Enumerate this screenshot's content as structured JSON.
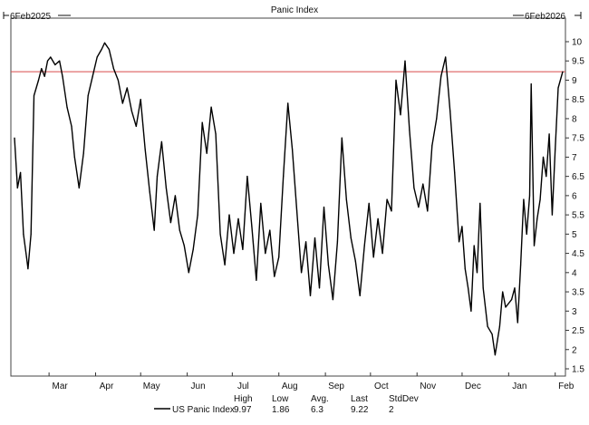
{
  "chart_data": {
    "type": "line",
    "title": "Panic Index",
    "start_label": "6Feb2025",
    "end_label": "6Feb2026",
    "xlabel": "",
    "ylabel": "",
    "ylim": [
      1.5,
      10
    ],
    "y_ticks": [
      "1.5",
      "2",
      "2.5",
      "3",
      "3.5",
      "4",
      "4.5",
      "5",
      "5.5",
      "6",
      "6.5",
      "7",
      "7.5",
      "8",
      "8.5",
      "9",
      "9.5",
      "10"
    ],
    "x_ticks": [
      {
        "label": "Mar",
        "date": "2025-03-01"
      },
      {
        "label": "Apr",
        "date": "2025-04-01"
      },
      {
        "label": "May",
        "date": "2025-05-01"
      },
      {
        "label": "Jun",
        "date": "2025-06-01"
      },
      {
        "label": "Jul",
        "date": "2025-07-01"
      },
      {
        "label": "Aug",
        "date": "2025-08-01"
      },
      {
        "label": "Sep",
        "date": "2025-09-01"
      },
      {
        "label": "Oct",
        "date": "2025-10-01"
      },
      {
        "label": "Nov",
        "date": "2025-11-01"
      },
      {
        "label": "Dec",
        "date": "2025-12-01"
      },
      {
        "label": "Jan",
        "date": "2026-01-01"
      },
      {
        "label": "Feb",
        "date": "2026-02-01"
      }
    ],
    "x_range": [
      "2025-02-06",
      "2026-02-06"
    ],
    "reference_line": {
      "value": 9.22,
      "color": "#d94a4a"
    },
    "grid": false,
    "series": [
      {
        "name": "US Panic Index",
        "color": "#000000",
        "points": [
          [
            "2025-02-06",
            7.5
          ],
          [
            "2025-02-08",
            6.2
          ],
          [
            "2025-02-10",
            6.6
          ],
          [
            "2025-02-12",
            5.0
          ],
          [
            "2025-02-14",
            4.4
          ],
          [
            "2025-02-15",
            4.1
          ],
          [
            "2025-02-17",
            5.0
          ],
          [
            "2025-02-19",
            8.6
          ],
          [
            "2025-02-22",
            9.0
          ],
          [
            "2025-02-24",
            9.3
          ],
          [
            "2025-02-26",
            9.1
          ],
          [
            "2025-02-28",
            9.5
          ],
          [
            "2025-03-02",
            9.6
          ],
          [
            "2025-03-05",
            9.4
          ],
          [
            "2025-03-08",
            9.5
          ],
          [
            "2025-03-10",
            9.1
          ],
          [
            "2025-03-13",
            8.3
          ],
          [
            "2025-03-16",
            7.8
          ],
          [
            "2025-03-18",
            7.0
          ],
          [
            "2025-03-21",
            6.2
          ],
          [
            "2025-03-24",
            7.1
          ],
          [
            "2025-03-27",
            8.6
          ],
          [
            "2025-03-30",
            9.1
          ],
          [
            "2025-04-02",
            9.6
          ],
          [
            "2025-04-05",
            9.8
          ],
          [
            "2025-04-07",
            9.97
          ],
          [
            "2025-04-10",
            9.8
          ],
          [
            "2025-04-13",
            9.3
          ],
          [
            "2025-04-16",
            9.0
          ],
          [
            "2025-04-19",
            8.4
          ],
          [
            "2025-04-22",
            8.8
          ],
          [
            "2025-04-25",
            8.2
          ],
          [
            "2025-04-28",
            7.8
          ],
          [
            "2025-05-01",
            8.5
          ],
          [
            "2025-05-04",
            7.2
          ],
          [
            "2025-05-07",
            6.1
          ],
          [
            "2025-05-10",
            5.1
          ],
          [
            "2025-05-12",
            6.5
          ],
          [
            "2025-05-15",
            7.4
          ],
          [
            "2025-05-18",
            6.2
          ],
          [
            "2025-05-21",
            5.3
          ],
          [
            "2025-05-24",
            6.0
          ],
          [
            "2025-05-27",
            5.1
          ],
          [
            "2025-05-30",
            4.7
          ],
          [
            "2025-06-02",
            4.0
          ],
          [
            "2025-06-05",
            4.6
          ],
          [
            "2025-06-08",
            5.5
          ],
          [
            "2025-06-11",
            7.9
          ],
          [
            "2025-06-14",
            7.1
          ],
          [
            "2025-06-17",
            8.3
          ],
          [
            "2025-06-20",
            7.6
          ],
          [
            "2025-06-23",
            5.0
          ],
          [
            "2025-06-26",
            4.2
          ],
          [
            "2025-06-29",
            5.5
          ],
          [
            "2025-07-02",
            4.5
          ],
          [
            "2025-07-05",
            5.4
          ],
          [
            "2025-07-08",
            4.6
          ],
          [
            "2025-07-11",
            6.5
          ],
          [
            "2025-07-14",
            5.2
          ],
          [
            "2025-07-17",
            3.8
          ],
          [
            "2025-07-20",
            5.8
          ],
          [
            "2025-07-23",
            4.5
          ],
          [
            "2025-07-26",
            5.1
          ],
          [
            "2025-07-29",
            3.9
          ],
          [
            "2025-08-01",
            4.4
          ],
          [
            "2025-08-04",
            6.5
          ],
          [
            "2025-08-07",
            8.4
          ],
          [
            "2025-08-10",
            7.2
          ],
          [
            "2025-08-13",
            5.6
          ],
          [
            "2025-08-16",
            4.0
          ],
          [
            "2025-08-19",
            4.8
          ],
          [
            "2025-08-22",
            3.4
          ],
          [
            "2025-08-25",
            4.9
          ],
          [
            "2025-08-28",
            3.6
          ],
          [
            "2025-08-31",
            5.7
          ],
          [
            "2025-09-03",
            4.2
          ],
          [
            "2025-09-06",
            3.3
          ],
          [
            "2025-09-09",
            4.8
          ],
          [
            "2025-09-12",
            7.5
          ],
          [
            "2025-09-15",
            5.9
          ],
          [
            "2025-09-18",
            4.9
          ],
          [
            "2025-09-21",
            4.3
          ],
          [
            "2025-09-24",
            3.4
          ],
          [
            "2025-09-27",
            4.7
          ],
          [
            "2025-09-30",
            5.8
          ],
          [
            "2025-10-03",
            4.4
          ],
          [
            "2025-10-06",
            5.4
          ],
          [
            "2025-10-09",
            4.5
          ],
          [
            "2025-10-12",
            5.9
          ],
          [
            "2025-10-15",
            5.6
          ],
          [
            "2025-10-18",
            9.0
          ],
          [
            "2025-10-21",
            8.1
          ],
          [
            "2025-10-24",
            9.5
          ],
          [
            "2025-10-27",
            7.7
          ],
          [
            "2025-10-30",
            6.2
          ],
          [
            "2025-11-02",
            5.7
          ],
          [
            "2025-11-05",
            6.3
          ],
          [
            "2025-11-08",
            5.6
          ],
          [
            "2025-11-11",
            7.3
          ],
          [
            "2025-11-14",
            8.0
          ],
          [
            "2025-11-17",
            9.1
          ],
          [
            "2025-11-20",
            9.6
          ],
          [
            "2025-11-23",
            8.2
          ],
          [
            "2025-11-26",
            6.6
          ],
          [
            "2025-11-29",
            4.8
          ],
          [
            "2025-12-01",
            5.2
          ],
          [
            "2025-12-03",
            4.1
          ],
          [
            "2025-12-05",
            3.6
          ],
          [
            "2025-12-07",
            3.0
          ],
          [
            "2025-12-09",
            4.7
          ],
          [
            "2025-12-11",
            4.0
          ],
          [
            "2025-12-13",
            5.8
          ],
          [
            "2025-12-15",
            3.6
          ],
          [
            "2025-12-18",
            2.6
          ],
          [
            "2025-12-21",
            2.4
          ],
          [
            "2025-12-23",
            1.86
          ],
          [
            "2025-12-26",
            2.6
          ],
          [
            "2025-12-28",
            3.5
          ],
          [
            "2025-12-30",
            3.1
          ],
          [
            "2026-01-03",
            3.3
          ],
          [
            "2026-01-05",
            3.6
          ],
          [
            "2026-01-07",
            2.7
          ],
          [
            "2026-01-09",
            4.2
          ],
          [
            "2026-01-11",
            5.9
          ],
          [
            "2026-01-13",
            5.0
          ],
          [
            "2026-01-15",
            6.0
          ],
          [
            "2026-01-16",
            8.9
          ],
          [
            "2026-01-18",
            4.7
          ],
          [
            "2026-01-20",
            5.4
          ],
          [
            "2026-01-22",
            5.9
          ],
          [
            "2026-01-24",
            7.0
          ],
          [
            "2026-01-26",
            6.5
          ],
          [
            "2026-01-28",
            7.6
          ],
          [
            "2026-01-30",
            5.5
          ],
          [
            "2026-02-01",
            7.2
          ],
          [
            "2026-02-03",
            8.8
          ],
          [
            "2026-02-06",
            9.22
          ]
        ]
      }
    ],
    "stats": {
      "headers": [
        "High",
        "Low",
        "Avg.",
        "Last",
        "StdDev"
      ],
      "values": [
        "9.97",
        "1.86",
        "6.3",
        "9.22",
        "2"
      ]
    }
  }
}
